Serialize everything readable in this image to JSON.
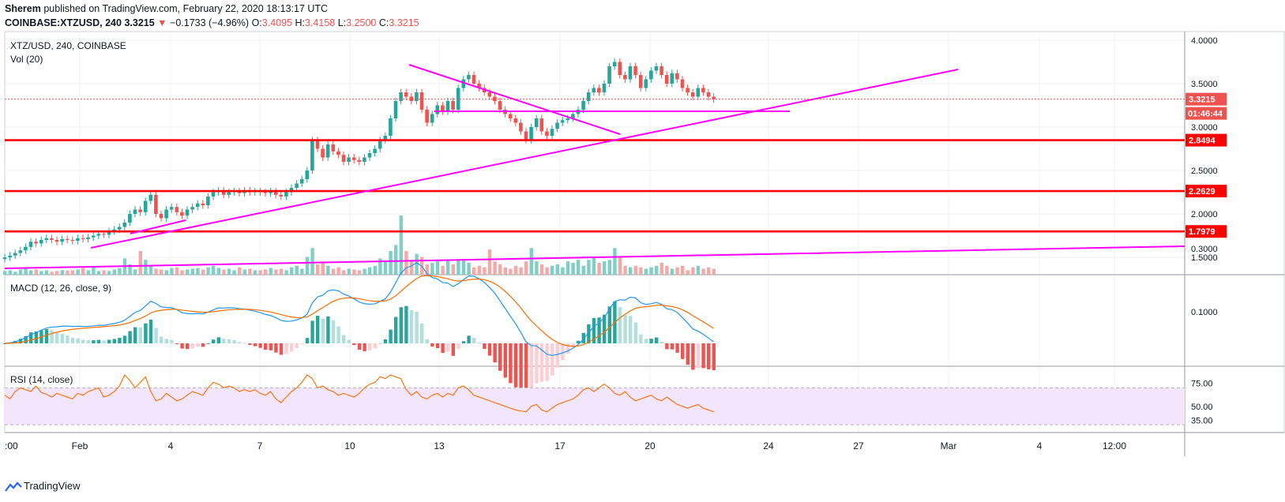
{
  "header": {
    "author": "Sherem",
    "published_text": "published on TradingView.com, February 22, 2020 18:13:17 UTC",
    "symbol": "COINBASE:XTZUSD, 240",
    "last": "3.3215",
    "change_arrow": "▼",
    "change": "−0.1733 (−4.96%)",
    "o_label": "O:",
    "o": "3.4095",
    "h_label": "H:",
    "h": "3.4158",
    "l_label": "L:",
    "l": "3.2500",
    "c_label": "C:",
    "c": "3.3215"
  },
  "footer": {
    "brand": "TradingView",
    "logo_icon": "tradingview-logo-icon"
  },
  "colors": {
    "up": "#26a69a",
    "down": "#ef5350",
    "trend": "#ff00ff",
    "level": "#ff0000",
    "macd": "#2196f3",
    "signal": "#ff6d00",
    "rsi": "#ff6d00"
  },
  "chart_data": {
    "type": "candlestick",
    "pair_label": "XTZ/USD, 240, COINBASE",
    "volume_label": "Vol (20)",
    "macd_label": "MACD (12, 26, close, 9)",
    "rsi_label": "RSI (14, close)",
    "x_tick_labels": [
      ":00",
      "Feb",
      "4",
      "7",
      "10",
      "13",
      "17",
      "20",
      "24",
      "27",
      "Mar",
      "4",
      "12:00"
    ],
    "price_axis": {
      "min": 1.3,
      "max": 4.1,
      "ticks": [
        "4.0000",
        "3.5000",
        "3.0000",
        "2.5000",
        "2.0000",
        "1.5000"
      ],
      "tick_values": [
        4.0,
        3.5,
        3.0,
        2.5,
        2.0,
        1.5
      ]
    },
    "last_price_label": "3.3215",
    "countdown_label": "01:46:44",
    "levels": [
      {
        "label": "2.8494",
        "value": 2.8494
      },
      {
        "label": "2.2629",
        "value": 2.2629
      },
      {
        "label": "1.7979",
        "value": 1.7979
      }
    ],
    "macd_axis": {
      "ticks": [
        "0.3000",
        "0.1000"
      ],
      "tick_values": [
        0.3,
        0.1
      ]
    },
    "rsi_axis": {
      "ticks": [
        "75.00",
        "50.00",
        "35.00"
      ],
      "tick_values": [
        75,
        50,
        35
      ]
    },
    "rsi_band": [
      30,
      70
    ],
    "closes": [
      1.5,
      1.52,
      1.55,
      1.58,
      1.62,
      1.68,
      1.66,
      1.7,
      1.72,
      1.7,
      1.68,
      1.71,
      1.7,
      1.69,
      1.72,
      1.71,
      1.73,
      1.75,
      1.77,
      1.76,
      1.8,
      1.82,
      1.85,
      1.9,
      2.0,
      2.05,
      2.02,
      2.15,
      2.22,
      2.0,
      1.95,
      2.05,
      2.08,
      2.02,
      1.98,
      2.05,
      2.08,
      2.12,
      2.1,
      2.2,
      2.25,
      2.27,
      2.22,
      2.25,
      2.26,
      2.24,
      2.27,
      2.25,
      2.26,
      2.25,
      2.24,
      2.26,
      2.22,
      2.2,
      2.25,
      2.3,
      2.35,
      2.4,
      2.5,
      2.85,
      2.75,
      2.65,
      2.8,
      2.72,
      2.68,
      2.6,
      2.65,
      2.62,
      2.6,
      2.65,
      2.7,
      2.75,
      2.85,
      2.9,
      3.1,
      3.3,
      3.4,
      3.35,
      3.3,
      3.4,
      3.2,
      3.05,
      3.15,
      3.25,
      3.18,
      3.3,
      3.2,
      3.45,
      3.55,
      3.6,
      3.5,
      3.45,
      3.4,
      3.35,
      3.3,
      3.2,
      3.15,
      3.1,
      3.05,
      2.95,
      2.85,
      3.0,
      3.1,
      2.95,
      2.9,
      2.98,
      3.05,
      3.08,
      3.1,
      3.15,
      3.2,
      3.3,
      3.4,
      3.45,
      3.4,
      3.5,
      3.7,
      3.75,
      3.6,
      3.55,
      3.7,
      3.6,
      3.45,
      3.55,
      3.65,
      3.7,
      3.6,
      3.5,
      3.62,
      3.55,
      3.45,
      3.4,
      3.35,
      3.45,
      3.4,
      3.35,
      3.32
    ],
    "volumes": [
      0.25,
      0.3,
      0.2,
      0.35,
      0.4,
      0.3,
      0.35,
      0.25,
      0.3,
      0.2,
      0.25,
      0.3,
      0.28,
      0.3,
      0.35,
      0.45,
      0.3,
      0.5,
      0.25,
      0.3,
      0.25,
      0.35,
      0.45,
      1.1,
      0.7,
      0.35,
      1.6,
      1.0,
      0.6,
      0.4,
      0.35,
      0.3,
      0.45,
      0.5,
      0.3,
      0.35,
      0.4,
      0.45,
      0.35,
      0.5,
      0.6,
      0.45,
      0.35,
      0.4,
      0.3,
      0.5,
      0.35,
      0.4,
      0.3,
      0.3,
      0.35,
      0.45,
      0.35,
      0.4,
      0.3,
      0.5,
      0.6,
      0.4,
      1.2,
      1.8,
      0.7,
      0.9,
      0.6,
      0.4,
      0.5,
      0.3,
      0.4,
      0.35,
      0.3,
      0.4,
      0.5,
      0.6,
      1.1,
      0.9,
      1.6,
      2.0,
      4.0,
      1.6,
      1.0,
      1.4,
      1.2,
      0.7,
      0.8,
      0.9,
      0.6,
      1.0,
      0.7,
      1.0,
      1.0,
      0.8,
      0.5,
      0.6,
      0.5,
      1.7,
      0.9,
      0.7,
      0.5,
      0.4,
      0.6,
      0.5,
      0.9,
      1.8,
      0.9,
      0.7,
      0.5,
      0.6,
      0.7,
      0.5,
      0.9,
      0.8,
      1.0,
      0.6,
      1.0,
      1.2,
      0.8,
      0.9,
      1.0,
      1.8,
      1.2,
      0.6,
      0.5,
      0.6,
      0.5,
      0.4,
      0.5,
      0.6,
      0.8,
      0.6,
      0.4,
      0.5,
      0.6,
      0.3,
      0.5,
      0.6,
      0.4,
      0.5,
      0.4
    ],
    "rsi": [
      62,
      58,
      66,
      70,
      68,
      66,
      72,
      65,
      63,
      60,
      64,
      62,
      60,
      58,
      64,
      62,
      66,
      68,
      70,
      60,
      62,
      66,
      72,
      84,
      78,
      70,
      76,
      82,
      66,
      56,
      58,
      64,
      60,
      56,
      58,
      62,
      66,
      64,
      62,
      70,
      76,
      74,
      70,
      72,
      70,
      66,
      68,
      66,
      68,
      64,
      62,
      66,
      58,
      54,
      60,
      66,
      70,
      76,
      84,
      80,
      70,
      72,
      68,
      66,
      62,
      64,
      62,
      60,
      64,
      70,
      74,
      76,
      82,
      80,
      84,
      82,
      80,
      68,
      62,
      66,
      60,
      58,
      62,
      64,
      60,
      64,
      62,
      70,
      72,
      68,
      62,
      60,
      58,
      56,
      54,
      52,
      50,
      48,
      46,
      45,
      44,
      50,
      52,
      46,
      44,
      48,
      52,
      54,
      56,
      58,
      62,
      68,
      70,
      66,
      70,
      74,
      70,
      64,
      62,
      66,
      60,
      56,
      58,
      60,
      62,
      58,
      56,
      60,
      56,
      52,
      50,
      48,
      50,
      52,
      48,
      46,
      44
    ]
  }
}
